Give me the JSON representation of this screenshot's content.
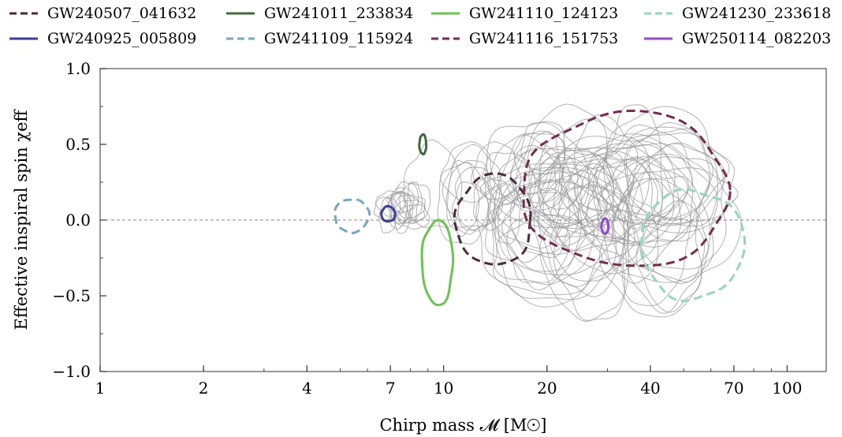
{
  "chart_data": {
    "type": "scatter",
    "title": "",
    "xlabel": "Chirp mass 𝓜 [M☉]",
    "ylabel": "Effective inspiral spin χeff",
    "xscale": "log",
    "xlim": [
      1,
      130
    ],
    "ylim": [
      -1.0,
      1.0
    ],
    "x_ticks": [
      1,
      2,
      4,
      7,
      10,
      20,
      40,
      70,
      100
    ],
    "x_tick_labels": [
      "1",
      "2",
      "4",
      "7",
      "10",
      "20",
      "40",
      "70",
      "100"
    ],
    "y_ticks": [
      -1.0,
      -0.5,
      0.0,
      0.5,
      1.0
    ],
    "y_tick_labels": [
      "−1.0",
      "−0.5",
      "0.0",
      "0.5",
      "1.0"
    ],
    "reference_line": {
      "y": 0.0,
      "style": "dashed",
      "color": "#888888"
    },
    "grid": false,
    "legend_position": "top",
    "background_population": {
      "description_color": "#9a9a9a",
      "count": 90
    },
    "series": [
      {
        "name": "GW240507_041632",
        "color": "#4a2a3a",
        "dash": "dashed",
        "center": [
          14.0,
          0.0
        ],
        "width_dex": 0.11,
        "height": 0.6
      },
      {
        "name": "GW240925_005809",
        "color": "#3c3ca0",
        "dash": "solid",
        "center": [
          6.9,
          0.04
        ],
        "width_dex": 0.02,
        "height": 0.1
      },
      {
        "name": "GW241011_233834",
        "color": "#3f6b3a",
        "dash": "solid",
        "center": [
          8.7,
          0.5
        ],
        "width_dex": 0.01,
        "height": 0.13
      },
      {
        "name": "GW241109_115924",
        "color": "#72a9c4",
        "dash": "dashed",
        "center": [
          5.4,
          0.03
        ],
        "width_dex": 0.05,
        "height": 0.22
      },
      {
        "name": "GW241110_124123",
        "color": "#69c64d",
        "dash": "solid",
        "center": [
          9.6,
          -0.28
        ],
        "width_dex": 0.045,
        "height": 0.56
      },
      {
        "name": "GW241116_151753",
        "color": "#7a2a52",
        "dash": "dashed",
        "center": [
          34.0,
          0.2
        ],
        "width_dex": 0.3,
        "height": 1.02
      },
      {
        "name": "GW241230_233618",
        "color": "#8fdab8",
        "dash": "dashed",
        "center": [
          53.0,
          -0.16
        ],
        "width_dex": 0.15,
        "height": 0.72
      },
      {
        "name": "GW250114_082203",
        "color": "#9448d8",
        "dash": "solid",
        "center": [
          29.5,
          -0.04
        ],
        "width_dex": 0.01,
        "height": 0.1
      }
    ]
  }
}
